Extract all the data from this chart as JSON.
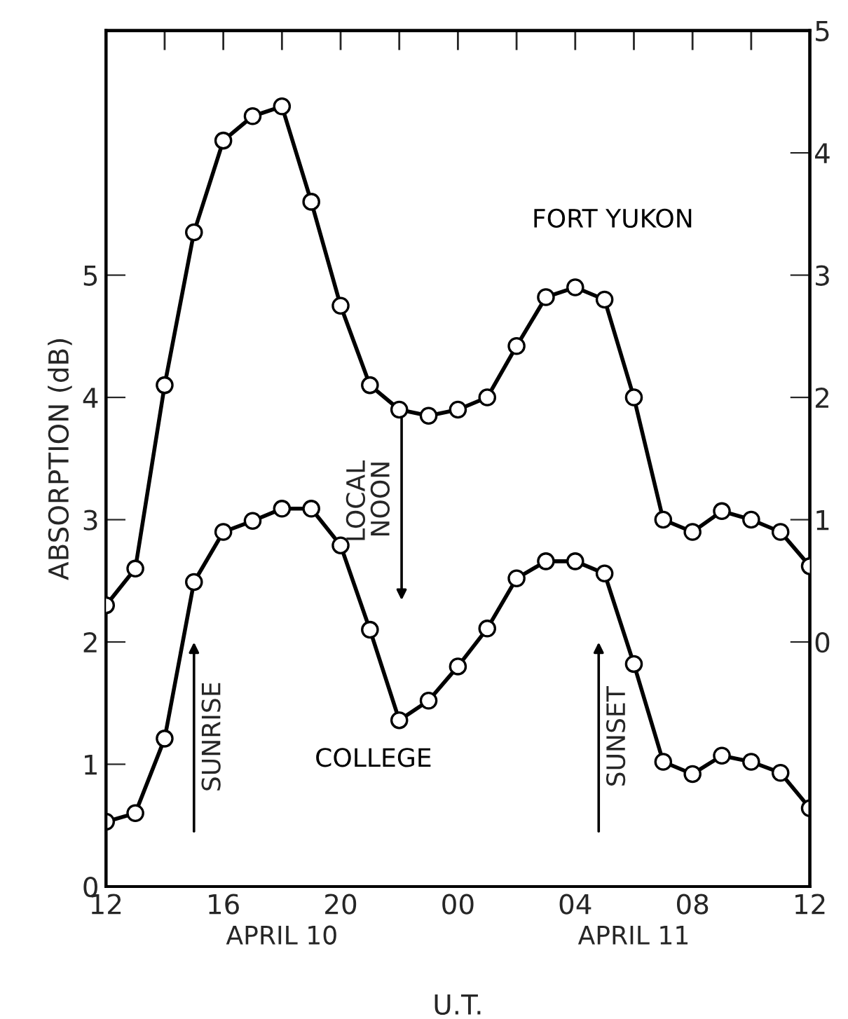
{
  "chart_data": {
    "type": "line",
    "xlabel": "U.T.",
    "ylabel": "ABSORPTION (dB)",
    "x": [
      12,
      13,
      14,
      15,
      16,
      17,
      18,
      19,
      20,
      21,
      22,
      23,
      24,
      25,
      26,
      27,
      28,
      29,
      30,
      31,
      32,
      33,
      34,
      35,
      36
    ],
    "series": [
      {
        "name": "FORT YUKON",
        "color": "#000000",
        "axis": "y2",
        "values": [
          0.3,
          0.6,
          2.1,
          3.35,
          4.1,
          4.3,
          4.38,
          3.6,
          2.75,
          2.1,
          1.9,
          1.85,
          1.9,
          2.0,
          2.42,
          2.82,
          2.9,
          2.8,
          2.0,
          1.0,
          0.9,
          1.07,
          1.0,
          0.9,
          0.62
        ]
      },
      {
        "name": "COLLEGE",
        "color": "#000000",
        "values": [
          0.53,
          0.6,
          1.21,
          2.49,
          2.9,
          2.99,
          3.09,
          3.09,
          2.79,
          2.1,
          1.36,
          1.52,
          1.8,
          2.11,
          2.52,
          2.66,
          2.66,
          2.56,
          1.82,
          1.02,
          0.92,
          1.07,
          1.02,
          0.93,
          0.64
        ]
      }
    ],
    "xlim": [
      12,
      36
    ],
    "xticks": [
      {
        "value": 12,
        "label": "12"
      },
      {
        "value": 14,
        "label": null
      },
      {
        "value": 16,
        "label": "16"
      },
      {
        "value": 18,
        "label": null
      },
      {
        "value": 20,
        "label": "20"
      },
      {
        "value": 22,
        "label": null
      },
      {
        "value": 24,
        "label": "00"
      },
      {
        "value": 26,
        "label": null
      },
      {
        "value": 28,
        "label": "04"
      },
      {
        "value": 30,
        "label": null
      },
      {
        "value": 32,
        "label": "08"
      },
      {
        "value": 34,
        "label": null
      },
      {
        "value": 36,
        "label": "12"
      }
    ],
    "ylim": [
      0,
      7
    ],
    "yticks": [
      0,
      1,
      2,
      3,
      4,
      5
    ],
    "y2lim": [
      -2,
      5
    ],
    "y2ticks": [
      0,
      1,
      2,
      3,
      4,
      5
    ],
    "marker": "circle",
    "line_style": "solid",
    "grid": false,
    "legend": false,
    "annotations": [
      "SUNRISE",
      "LOCAL\nNOON",
      "SUNSET",
      "APRIL 10",
      "APRIL 11"
    ]
  }
}
